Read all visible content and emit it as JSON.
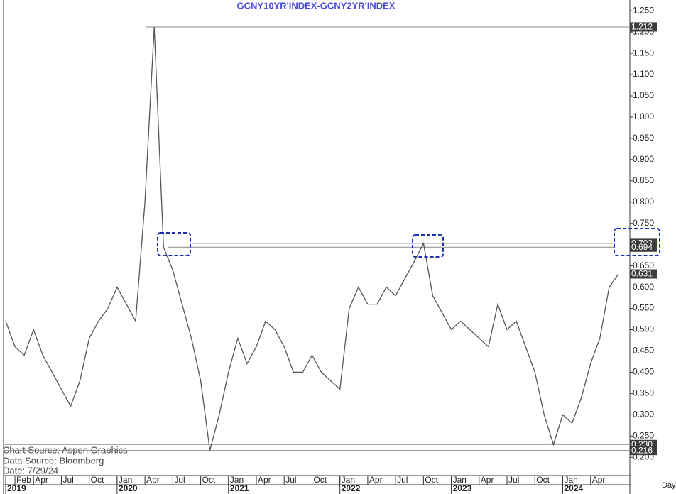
{
  "chart_data": {
    "type": "line",
    "title": "GCNY10YR'INDEX-GCNY2YR'INDEX",
    "x": [
      "2019-01",
      "2019-02",
      "2019-03",
      "2019-04",
      "2019-05",
      "2019-06",
      "2019-07",
      "2019-08",
      "2019-09",
      "2019-10",
      "2019-11",
      "2019-12",
      "2020-01",
      "2020-02",
      "2020-03",
      "2020-04",
      "2020-05",
      "2020-06",
      "2020-07",
      "2020-08",
      "2020-09",
      "2020-10",
      "2020-11",
      "2020-12",
      "2021-01",
      "2021-02",
      "2021-03",
      "2021-04",
      "2021-05",
      "2021-06",
      "2021-07",
      "2021-08",
      "2021-09",
      "2021-10",
      "2021-11",
      "2021-12",
      "2022-01",
      "2022-02",
      "2022-03",
      "2022-04",
      "2022-05",
      "2022-06",
      "2022-07",
      "2022-08",
      "2022-09",
      "2022-10",
      "2022-11",
      "2022-12",
      "2023-01",
      "2023-02",
      "2023-03",
      "2023-04",
      "2023-05",
      "2023-06",
      "2023-07",
      "2023-08",
      "2023-09",
      "2023-10",
      "2023-11",
      "2023-12",
      "2024-01",
      "2024-02",
      "2024-03",
      "2024-04",
      "2024-05",
      "2024-06",
      "2024-07"
    ],
    "values": [
      0.52,
      0.46,
      0.44,
      0.5,
      0.44,
      0.4,
      0.36,
      0.32,
      0.38,
      0.48,
      0.52,
      0.55,
      0.6,
      0.56,
      0.52,
      0.8,
      1.212,
      0.694,
      0.64,
      0.56,
      0.48,
      0.38,
      0.216,
      0.3,
      0.4,
      0.48,
      0.42,
      0.46,
      0.52,
      0.5,
      0.46,
      0.4,
      0.4,
      0.44,
      0.4,
      0.38,
      0.36,
      0.55,
      0.6,
      0.56,
      0.56,
      0.6,
      0.58,
      0.62,
      0.66,
      0.703,
      0.58,
      0.54,
      0.5,
      0.52,
      0.5,
      0.48,
      0.46,
      0.56,
      0.5,
      0.52,
      0.46,
      0.4,
      0.3,
      0.23,
      0.3,
      0.28,
      0.34,
      0.42,
      0.48,
      0.6,
      0.631
    ],
    "color": "#555555",
    "xlim": [
      "2019-01",
      "2024-08"
    ],
    "xticks": [
      {
        "value": "2019-02",
        "label": "Feb"
      },
      {
        "value": "2019-04",
        "label": "Apr"
      },
      {
        "value": "2019-07",
        "label": "Jul"
      },
      {
        "value": "2019-10",
        "label": "Oct"
      },
      {
        "value": "2020-01",
        "label": "Jan"
      },
      {
        "value": "2020-04",
        "label": "Apr"
      },
      {
        "value": "2020-07",
        "label": "Jul"
      },
      {
        "value": "2020-10",
        "label": "Oct"
      },
      {
        "value": "2021-01",
        "label": "Jan"
      },
      {
        "value": "2021-04",
        "label": "Apr"
      },
      {
        "value": "2021-07",
        "label": "Jul"
      },
      {
        "value": "2021-10",
        "label": "Oct"
      },
      {
        "value": "2022-01",
        "label": "Jan"
      },
      {
        "value": "2022-04",
        "label": "Apr"
      },
      {
        "value": "2022-07",
        "label": "Jul"
      },
      {
        "value": "2022-10",
        "label": "Oct"
      },
      {
        "value": "2023-01",
        "label": "Jan"
      },
      {
        "value": "2023-04",
        "label": "Apr"
      },
      {
        "value": "2023-07",
        "label": "Jul"
      },
      {
        "value": "2023-10",
        "label": "Oct"
      },
      {
        "value": "2024-01",
        "label": "Jan"
      },
      {
        "value": "2024-04",
        "label": "Apr"
      }
    ],
    "year_ticks": [
      {
        "value": "2019-01",
        "label": "2019"
      },
      {
        "value": "2020-01",
        "label": "2020"
      },
      {
        "value": "2021-01",
        "label": "2021"
      },
      {
        "value": "2022-01",
        "label": "2022"
      },
      {
        "value": "2023-01",
        "label": "2023"
      },
      {
        "value": "2024-01",
        "label": "2024"
      }
    ],
    "x_unit": "Day",
    "ylim": [
      0.157,
      1.272
    ],
    "yticks": [
      {
        "value": 0.2,
        "label": "0.200"
      },
      {
        "value": 0.25,
        "label": "0.250"
      },
      {
        "value": 0.3,
        "label": "0.300"
      },
      {
        "value": 0.35,
        "label": "0.350"
      },
      {
        "value": 0.4,
        "label": "0.400"
      },
      {
        "value": 0.45,
        "label": "0.450"
      },
      {
        "value": 0.5,
        "label": "0.500"
      },
      {
        "value": 0.55,
        "label": "0.550"
      },
      {
        "value": 0.6,
        "label": "0.600"
      },
      {
        "value": 0.65,
        "label": "0.650"
      },
      {
        "value": 0.7,
        "label": "0.700"
      },
      {
        "value": 0.75,
        "label": "0.750"
      },
      {
        "value": 0.8,
        "label": "0.800"
      },
      {
        "value": 0.85,
        "label": "0.850"
      },
      {
        "value": 0.9,
        "label": "0.900"
      },
      {
        "value": 0.95,
        "label": "0.950"
      },
      {
        "value": 1.0,
        "label": "1.000"
      },
      {
        "value": 1.05,
        "label": "1.050"
      },
      {
        "value": 1.1,
        "label": "1.100"
      },
      {
        "value": 1.15,
        "label": "1.150"
      },
      {
        "value": 1.2,
        "label": "1.200"
      },
      {
        "value": 1.25,
        "label": "1.250"
      }
    ],
    "reference_lines": [
      1.212,
      0.703,
      0.694,
      {
        "value": 0.23,
        "label": "0.230"
      },
      0.216
    ],
    "grid": false,
    "source_lines": [
      "Chart Source:  Aspen  Graphics",
      "Data  Source:  Bloomberg",
      "Date:    7/29/24"
    ]
  }
}
